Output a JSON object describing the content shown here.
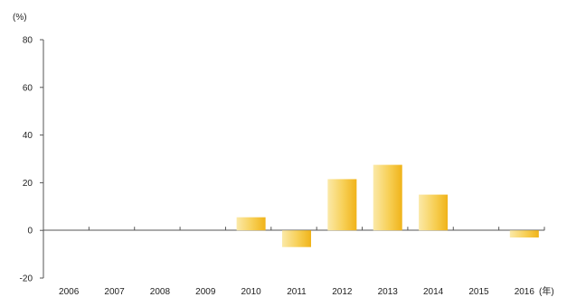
{
  "chart_data": {
    "type": "bar",
    "title": "",
    "ylabel": "(%)",
    "xlabel": "(年)",
    "categories": [
      "2006",
      "2007",
      "2008",
      "2009",
      "2010",
      "2011",
      "2012",
      "2013",
      "2014",
      "2015",
      "2016"
    ],
    "series": [
      {
        "values": [
          0,
          0,
          0,
          0,
          5.5,
          -7,
          21.5,
          27.5,
          15,
          0,
          -3
        ]
      }
    ],
    "ylim": [
      -20,
      80
    ],
    "yticks": [
      -20,
      0,
      20,
      40,
      60,
      80
    ],
    "grid": false,
    "colors": {
      "bar_light": "#fbe9a8",
      "bar_dark": "#f0b319",
      "axis": "#555555"
    }
  }
}
